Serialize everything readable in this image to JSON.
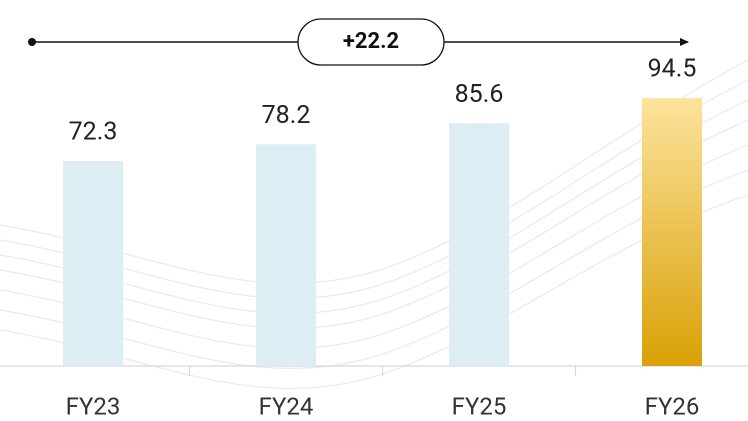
{
  "chart_data": {
    "type": "bar",
    "annotation": "+22.2",
    "categories": [
      "FY23",
      "FY24",
      "FY25",
      "FY26"
    ],
    "values": [
      72.3,
      78.2,
      85.6,
      94.5
    ],
    "colors": [
      [
        "#dcedf3",
        "#dcedf3"
      ],
      [
        "#dcedf3",
        "#dcedf3"
      ],
      [
        "#dcedf3",
        "#dcedf3"
      ],
      [
        "#fde39c",
        "#d9a106"
      ]
    ]
  }
}
